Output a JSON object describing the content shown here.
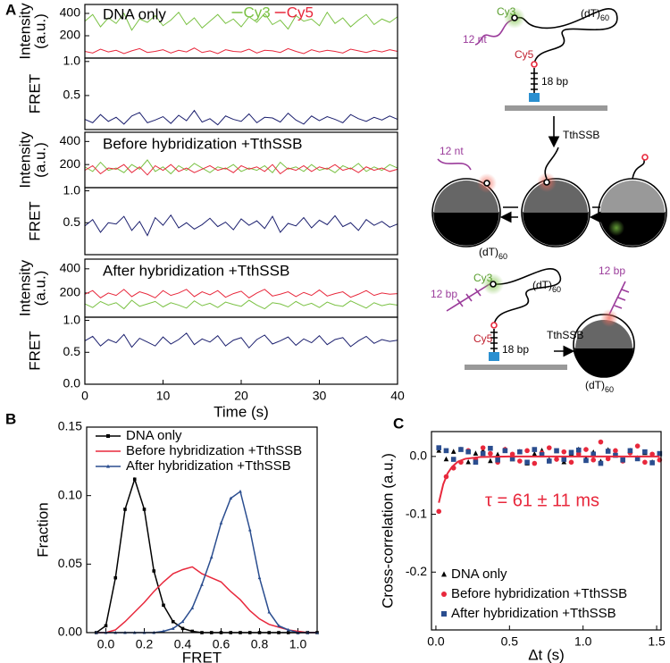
{
  "chart_data": [
    {
      "type": "line",
      "panel": "A",
      "annotation": "DNA only",
      "ylabel_lines": [
        "Intensity",
        "(a.u.)"
      ],
      "legend": "top",
      "x": [
        0,
        1,
        2,
        3,
        4,
        5,
        6,
        7,
        8,
        9,
        10,
        11,
        12,
        13,
        14,
        15,
        16,
        17,
        18,
        19,
        20,
        21,
        22,
        23,
        24,
        25,
        26,
        27,
        28,
        29,
        30,
        31,
        32,
        33,
        34,
        35,
        36,
        37,
        38,
        39,
        40
      ],
      "xlim": [
        0,
        40
      ],
      "ylim": [
        0,
        480
      ],
      "yticks": [
        200,
        400
      ],
      "series": [
        {
          "name": "Cy3",
          "color": "#7ac143",
          "values": [
            330,
            390,
            280,
            360,
            310,
            400,
            250,
            350,
            320,
            380,
            290,
            340,
            410,
            300,
            360,
            270,
            330,
            390,
            310,
            350,
            280,
            370,
            320,
            400,
            300,
            340,
            260,
            380,
            330,
            350,
            290,
            410,
            310,
            360,
            280,
            340,
            390,
            300,
            350,
            320,
            370
          ]
        },
        {
          "name": "Cy5",
          "color": "#e8283c",
          "values": [
            60,
            45,
            80,
            55,
            70,
            40,
            65,
            85,
            50,
            60,
            75,
            45,
            70,
            55,
            90,
            50,
            65,
            40,
            75,
            60,
            55,
            80,
            45,
            70,
            65,
            50,
            85,
            60,
            40,
            75,
            55,
            70,
            60,
            45,
            80,
            65,
            50,
            70,
            55,
            75,
            60
          ]
        }
      ]
    },
    {
      "type": "line",
      "ylabel": "FRET",
      "color": "#1b1f6e",
      "x": [
        0,
        1,
        2,
        3,
        4,
        5,
        6,
        7,
        8,
        9,
        10,
        11,
        12,
        13,
        14,
        15,
        16,
        17,
        18,
        19,
        20,
        21,
        22,
        23,
        24,
        25,
        26,
        27,
        28,
        29,
        30,
        31,
        32,
        33,
        34,
        35,
        36,
        37,
        38,
        39,
        40
      ],
      "xlim": [
        0,
        40
      ],
      "ylim": [
        0,
        1.05
      ],
      "yticks": [
        {
          "value": 1.0,
          "label": "1.0"
        },
        0.5
      ],
      "values": [
        0.15,
        0.1,
        0.22,
        0.12,
        0.18,
        0.08,
        0.2,
        0.25,
        0.1,
        0.14,
        0.19,
        0.09,
        0.21,
        0.13,
        0.28,
        0.11,
        0.16,
        0.07,
        0.2,
        0.15,
        0.12,
        0.23,
        0.1,
        0.18,
        0.17,
        0.11,
        0.24,
        0.14,
        0.08,
        0.2,
        0.13,
        0.19,
        0.15,
        0.1,
        0.22,
        0.16,
        0.12,
        0.18,
        0.14,
        0.2,
        0.15
      ]
    },
    {
      "type": "line",
      "annotation": "Before hybridization +TthSSB",
      "ylabel_lines": [
        "Intensity",
        "(a.u.)"
      ],
      "x": [
        0,
        1,
        2,
        3,
        4,
        5,
        6,
        7,
        8,
        9,
        10,
        11,
        12,
        13,
        14,
        15,
        16,
        17,
        18,
        19,
        20,
        21,
        22,
        23,
        24,
        25,
        26,
        27,
        28,
        29,
        30,
        31,
        32,
        33,
        34,
        35,
        36,
        37,
        38,
        39,
        40
      ],
      "xlim": [
        0,
        40
      ],
      "ylim": [
        0,
        480
      ],
      "yticks": [
        200,
        400
      ],
      "series": [
        {
          "color": "#7ac143",
          "values": [
            180,
            140,
            220,
            150,
            170,
            130,
            200,
            160,
            240,
            140,
            180,
            120,
            190,
            150,
            210,
            170,
            130,
            180,
            160,
            200,
            140,
            170,
            150,
            190,
            130,
            220,
            160,
            180,
            140,
            200,
            150,
            170,
            130,
            190,
            160,
            210,
            140,
            180,
            150,
            200,
            170
          ]
        },
        {
          "color": "#e8283c",
          "values": [
            150,
            190,
            120,
            170,
            160,
            200,
            130,
            180,
            110,
            190,
            150,
            200,
            140,
            170,
            130,
            160,
            190,
            150,
            170,
            130,
            190,
            160,
            180,
            140,
            200,
            120,
            170,
            150,
            190,
            140,
            180,
            160,
            200,
            150,
            170,
            130,
            180,
            150,
            170,
            140,
            160
          ]
        }
      ]
    },
    {
      "type": "line",
      "ylabel": "FRET",
      "color": "#1b1f6e",
      "x": [
        0,
        1,
        2,
        3,
        4,
        5,
        6,
        7,
        8,
        9,
        10,
        11,
        12,
        13,
        14,
        15,
        16,
        17,
        18,
        19,
        20,
        21,
        22,
        23,
        24,
        25,
        26,
        27,
        28,
        29,
        30,
        31,
        32,
        33,
        34,
        35,
        36,
        37,
        38,
        39,
        40
      ],
      "xlim": [
        0,
        40
      ],
      "ylim": [
        0,
        1.05
      ],
      "yticks": [
        {
          "value": 1.0,
          "label": "1.0"
        },
        0.5
      ],
      "values": [
        0.45,
        0.55,
        0.35,
        0.5,
        0.48,
        0.6,
        0.38,
        0.52,
        0.3,
        0.58,
        0.46,
        0.62,
        0.42,
        0.5,
        0.4,
        0.47,
        0.57,
        0.44,
        0.51,
        0.39,
        0.56,
        0.46,
        0.53,
        0.41,
        0.6,
        0.35,
        0.49,
        0.45,
        0.58,
        0.42,
        0.54,
        0.47,
        0.61,
        0.44,
        0.5,
        0.38,
        0.55,
        0.46,
        0.52,
        0.43,
        0.48
      ]
    },
    {
      "type": "line",
      "annotation": "After hybridization +TthSSB",
      "ylabel_lines": [
        "Intensity",
        "(a.u.)"
      ],
      "x": [
        0,
        1,
        2,
        3,
        4,
        5,
        6,
        7,
        8,
        9,
        10,
        11,
        12,
        13,
        14,
        15,
        16,
        17,
        18,
        19,
        20,
        21,
        22,
        23,
        24,
        25,
        26,
        27,
        28,
        29,
        30,
        31,
        32,
        33,
        34,
        35,
        36,
        37,
        38,
        39,
        40
      ],
      "xlim": [
        0,
        40
      ],
      "ylim": [
        0,
        480
      ],
      "yticks": [
        200,
        400
      ],
      "series": [
        {
          "color": "#7ac143",
          "values": [
            110,
            80,
            130,
            100,
            120,
            70,
            140,
            90,
            110,
            130,
            85,
            120,
            100,
            75,
            135,
            95,
            115,
            80,
            125,
            105,
            90,
            140,
            100,
            70,
            120,
            110,
            85,
            130,
            95,
            115,
            80,
            125,
            100,
            90,
            135,
            105,
            75,
            120,
            95,
            110,
            100
          ]
        },
        {
          "color": "#e8283c",
          "values": [
            190,
            220,
            160,
            200,
            180,
            230,
            170,
            210,
            190,
            160,
            220,
            180,
            200,
            230,
            170,
            210,
            185,
            220,
            165,
            195,
            215,
            160,
            200,
            230,
            175,
            190,
            210,
            170,
            205,
            180,
            225,
            175,
            195,
            210,
            165,
            190,
            220,
            180,
            200,
            190,
            195
          ]
        }
      ]
    },
    {
      "type": "line",
      "ylabel": "FRET",
      "xlabel": "Time (s)",
      "color": "#1b1f6e",
      "x": [
        0,
        1,
        2,
        3,
        4,
        5,
        6,
        7,
        8,
        9,
        10,
        11,
        12,
        13,
        14,
        15,
        16,
        17,
        18,
        19,
        20,
        21,
        22,
        23,
        24,
        25,
        26,
        27,
        28,
        29,
        30,
        31,
        32,
        33,
        34,
        35,
        36,
        37,
        38,
        39,
        40
      ],
      "xlim": [
        0,
        40
      ],
      "ylim": [
        0,
        1.05
      ],
      "yticks": [
        {
          "value": 1.0,
          "label": "1.0"
        },
        0.5,
        {
          "value": 0.0,
          "label": "0.0"
        }
      ],
      "xticks": [
        0,
        10,
        20,
        30,
        40
      ],
      "values": [
        0.68,
        0.75,
        0.6,
        0.7,
        0.65,
        0.78,
        0.58,
        0.72,
        0.66,
        0.6,
        0.74,
        0.63,
        0.7,
        0.8,
        0.62,
        0.71,
        0.66,
        0.76,
        0.6,
        0.69,
        0.73,
        0.57,
        0.7,
        0.77,
        0.63,
        0.68,
        0.74,
        0.61,
        0.71,
        0.65,
        0.76,
        0.62,
        0.7,
        0.73,
        0.59,
        0.68,
        0.75,
        0.64,
        0.7,
        0.67,
        0.69
      ]
    },
    {
      "type": "line",
      "panel": "B",
      "ylabel": "Fraction",
      "xlabel": "FRET",
      "legend": "upper left",
      "x": [
        -0.05,
        0,
        0.05,
        0.1,
        0.15,
        0.2,
        0.25,
        0.3,
        0.35,
        0.4,
        0.45,
        0.5,
        0.55,
        0.6,
        0.65,
        0.7,
        0.75,
        0.8,
        0.85,
        0.9,
        0.95,
        1.0,
        1.05,
        1.1
      ],
      "xlim": [
        -0.1,
        1.1
      ],
      "ylim": [
        0,
        0.15
      ],
      "xticks": [
        {
          "value": 0.0,
          "label": "0.0"
        },
        0.2,
        0.4,
        0.6,
        0.8,
        {
          "value": 1.0,
          "label": "1.0"
        }
      ],
      "yticks": [
        {
          "value": 0.0,
          "label": "0.00"
        },
        {
          "value": 0.05,
          "label": "0.05"
        },
        {
          "value": 0.1,
          "label": "0.10"
        },
        {
          "value": 0.15,
          "label": "0.15"
        }
      ],
      "series": [
        {
          "name": "DNA only",
          "color": "#000000",
          "marker": "square",
          "values": [
            0,
            0.005,
            0.04,
            0.09,
            0.112,
            0.09,
            0.045,
            0.02,
            0.008,
            0.003,
            0.001,
            0,
            0,
            0,
            0,
            0,
            0,
            0,
            0,
            0,
            0,
            0,
            0,
            0
          ]
        },
        {
          "name": "Before hybridization +TthSSB",
          "color": "#e8283c",
          "values": [
            0,
            0,
            0.002,
            0.008,
            0.015,
            0.022,
            0.03,
            0.037,
            0.043,
            0.046,
            0.048,
            0.043,
            0.04,
            0.037,
            0.03,
            0.024,
            0.016,
            0.01,
            0.006,
            0.004,
            0.002,
            0.001,
            0,
            0
          ]
        },
        {
          "name": "After hybridization +TthSSB",
          "color": "#2a4d8f",
          "marker": "triangle",
          "values": [
            0,
            0,
            0,
            0,
            0,
            0,
            0,
            0.001,
            0.003,
            0.008,
            0.018,
            0.035,
            0.055,
            0.08,
            0.098,
            0.103,
            0.075,
            0.04,
            0.015,
            0.005,
            0.002,
            0,
            0,
            0
          ]
        }
      ]
    },
    {
      "type": "scatter",
      "panel": "C",
      "ylabel": "Cross-correlation (a.u.)",
      "xlabel": "Δt (s)",
      "legend": "lower left",
      "annotation": "τ = 61 ± 11 ms",
      "annotation_color": "#e8283c",
      "x": [
        0.02,
        0.07,
        0.12,
        0.17,
        0.22,
        0.27,
        0.32,
        0.37,
        0.42,
        0.47,
        0.52,
        0.57,
        0.62,
        0.67,
        0.72,
        0.77,
        0.82,
        0.87,
        0.92,
        0.97,
        1.02,
        1.07,
        1.12,
        1.17,
        1.22,
        1.27,
        1.32,
        1.37,
        1.42,
        1.47,
        1.52
      ],
      "xlim": [
        -0.03,
        1.53
      ],
      "ylim": [
        -0.3,
        0.043
      ],
      "xticks": [
        {
          "value": 0.0,
          "label": "0.0"
        },
        0.5,
        {
          "value": 1.0,
          "label": "1.0"
        },
        1.5
      ],
      "yticks": [
        -0.2,
        -0.1,
        {
          "value": 0.0,
          "label": "0.0"
        }
      ],
      "fit": {
        "color": "#e8283c",
        "x": [
          0.02,
          0.05,
          0.08,
          0.11,
          0.15,
          0.2,
          0.3,
          0.5,
          1.0,
          1.52
        ],
        "values": [
          -0.08,
          -0.048,
          -0.029,
          -0.018,
          -0.009,
          -0.004,
          -0.001,
          0,
          0,
          0
        ]
      },
      "series": [
        {
          "name": "DNA only",
          "color": "#000000",
          "marker": "triangle",
          "values": [
            0.01,
            -0.005,
            0.008,
            0.012,
            -0.01,
            0.005,
            0.01,
            -0.008,
            0.003,
            0.012,
            -0.005,
            0.008,
            -0.012,
            0.004,
            0.01,
            -0.006,
            0.009,
            -0.01,
            0.005,
            0.012,
            -0.004,
            0.007,
            -0.009,
            0.011,
            0.002,
            -0.007,
            0.01,
            -0.003,
            0.006,
            -0.01,
            0.004
          ]
        },
        {
          "name": "Before hybridization +TthSSB",
          "color": "#e8283c",
          "marker": "circle",
          "values": [
            -0.095,
            -0.035,
            -0.02,
            -0.01,
            0.01,
            -0.005,
            0.015,
            0.005,
            -0.01,
            0.012,
            0.004,
            -0.008,
            0.01,
            -0.012,
            0.006,
            0.015,
            -0.005,
            0.008,
            -0.01,
            0.004,
            0.012,
            -0.006,
            0.025,
            -0.004,
            0.01,
            -0.008,
            0.006,
            0.018,
            -0.01,
            0.004,
            -0.006
          ]
        },
        {
          "name": "After hybridization +TthSSB",
          "color": "#2a4d8f",
          "marker": "square",
          "values": [
            0.015,
            0.01,
            -0.005,
            0.012,
            0.008,
            -0.01,
            0.005,
            0.014,
            -0.006,
            0.01,
            -0.004,
            0.008,
            -0.01,
            0.012,
            0.003,
            -0.008,
            0.01,
            -0.005,
            0.007,
            0.011,
            -0.007,
            0.004,
            -0.012,
            0.009,
            0.002,
            -0.006,
            0.01,
            -0.004,
            0.008,
            -0.011,
            0.005
          ]
        }
      ]
    }
  ],
  "diagram": {
    "labels": [
      "Cy3",
      "12 nt",
      "Cy5",
      "18 bp",
      "TthSSB",
      "12 nt",
      "Cy3",
      "12 bp",
      "Cy5",
      "18 bp",
      "TthSSB",
      "12 bp"
    ],
    "dt": [
      {
        "text": "(dT)",
        "sub": "60"
      },
      {
        "text": "(dT)",
        "sub": "60"
      },
      {
        "text": "(dT)",
        "sub": "60"
      },
      {
        "text": "(dT)",
        "sub": "60"
      }
    ]
  }
}
